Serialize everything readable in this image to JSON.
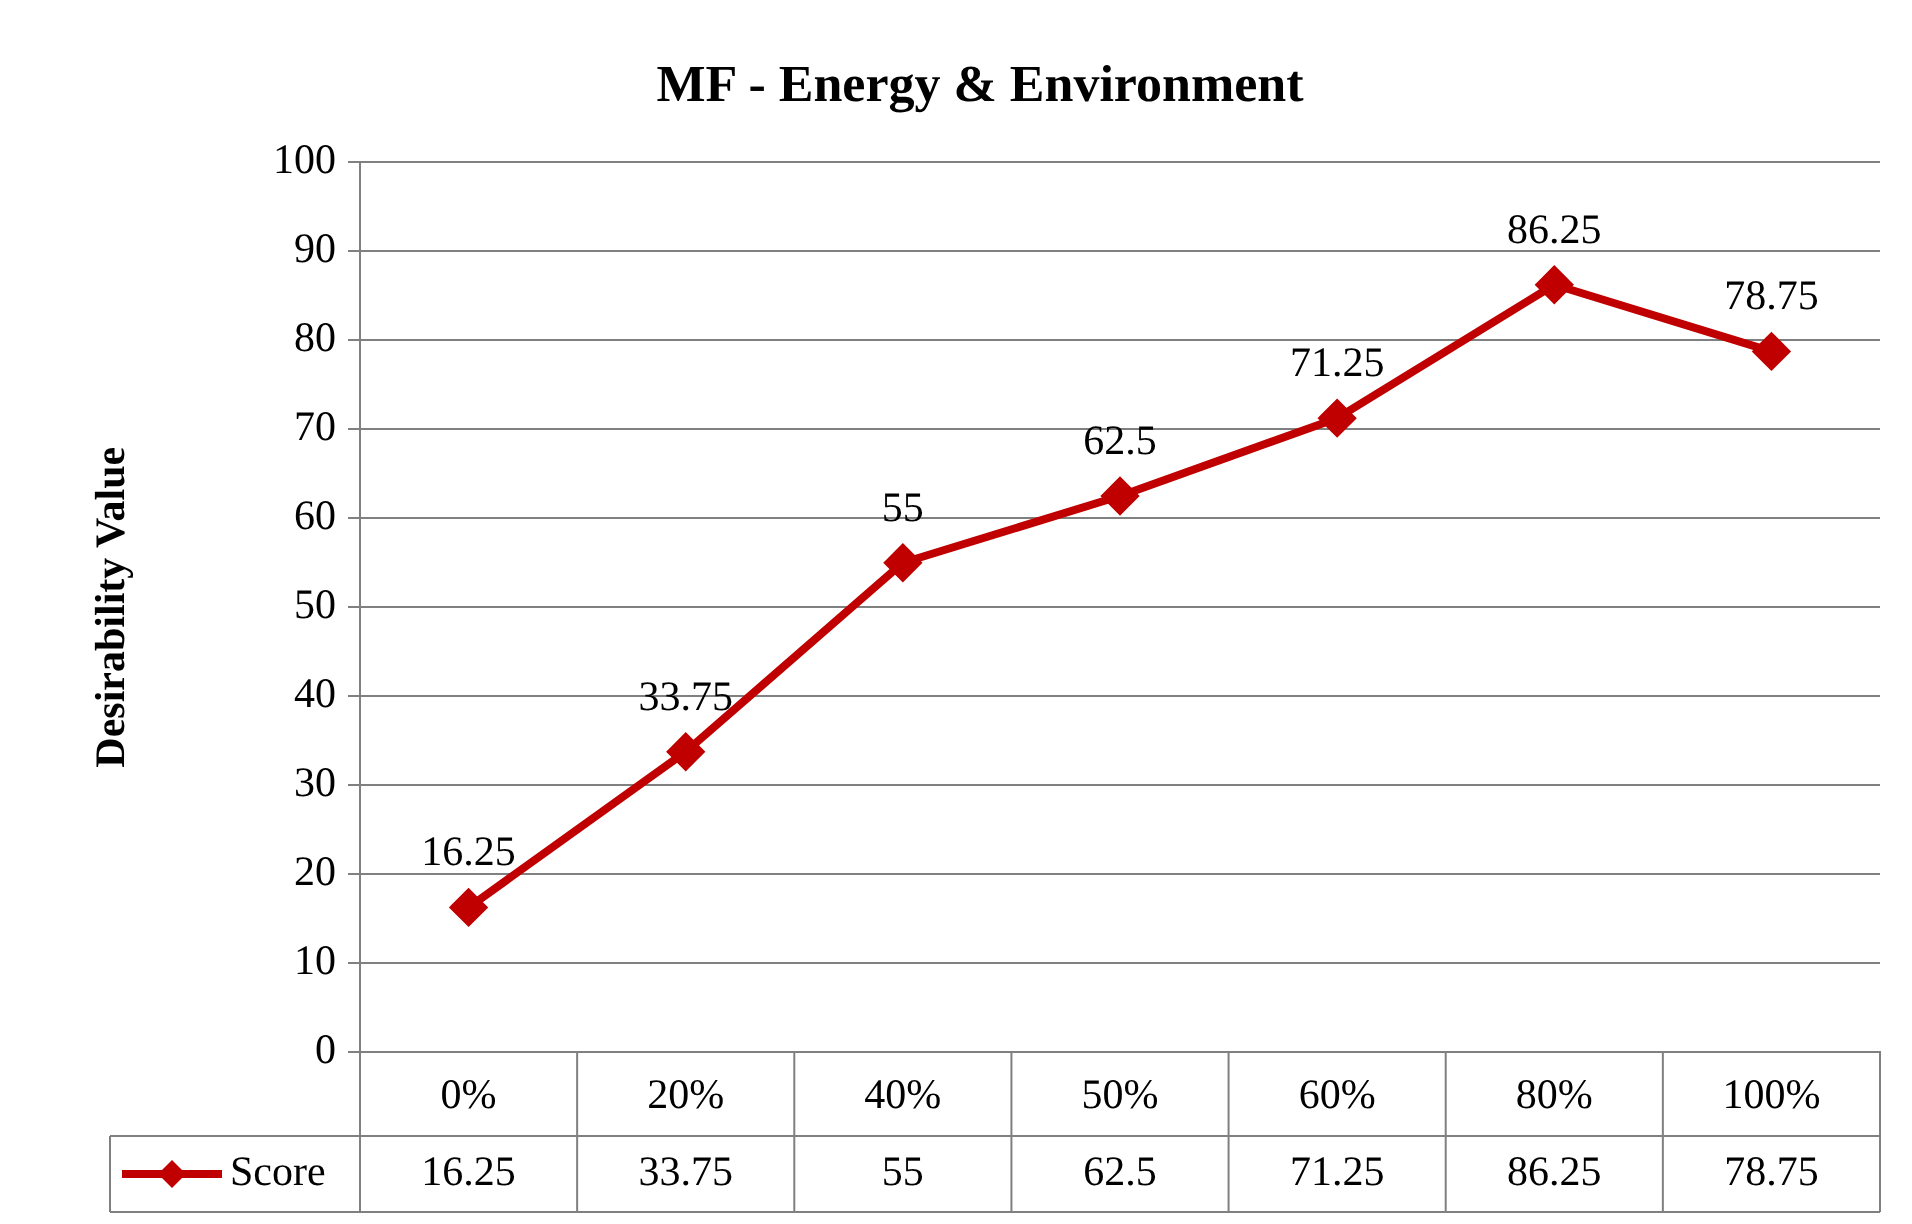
{
  "chart_data": {
    "type": "line",
    "title": "MF - Energy & Environment",
    "ylabel": "Desirability Value",
    "categories": [
      "0%",
      "20%",
      "40%",
      "50%",
      "60%",
      "80%",
      "100%"
    ],
    "series": [
      {
        "name": "Score",
        "color": "#c00000",
        "values": [
          16.25,
          33.75,
          55,
          62.5,
          71.25,
          86.25,
          78.75
        ],
        "value_labels": [
          "16.25",
          "33.75",
          "55",
          "62.5",
          "71.25",
          "86.25",
          "78.75"
        ]
      }
    ],
    "ylim": [
      0,
      100
    ],
    "yticks": [
      0,
      10,
      20,
      30,
      40,
      50,
      60,
      70,
      80,
      90,
      100
    ],
    "grid": "y",
    "legend": "bottom",
    "marker": "diamond",
    "line_style": "solid",
    "data_labels": true,
    "annotations": [
      "16.25",
      "33.75",
      "55",
      "62.5",
      "71.25",
      "86.25",
      "78.75"
    ]
  }
}
